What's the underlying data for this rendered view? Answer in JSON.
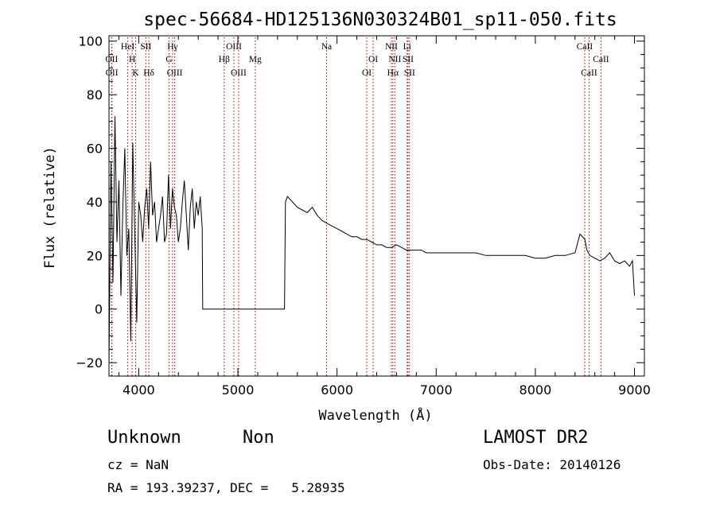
{
  "chart_data": {
    "type": "line",
    "title": "spec-56684-HD125136N030324B01_sp11-050.fits",
    "xlabel": "Wavelength (Å)",
    "ylabel": "Flux (relative)",
    "xlim": [
      3700,
      9100
    ],
    "ylim": [
      -25,
      102
    ],
    "xticks": [
      4000,
      5000,
      6000,
      7000,
      8000,
      9000
    ],
    "yticks": [
      -20,
      0,
      20,
      40,
      60,
      80,
      100
    ],
    "grid": false,
    "series": [
      {
        "x": [
          3700,
          3720,
          3740,
          3760,
          3780,
          3800,
          3820,
          3840,
          3860,
          3880,
          3900,
          3920,
          3940,
          3960,
          3980,
          4000,
          4020,
          4040,
          4060,
          4080,
          4100,
          4120,
          4140,
          4160,
          4180,
          4200,
          4220,
          4240,
          4260,
          4280,
          4300,
          4320,
          4340,
          4360,
          4380,
          4400,
          4420,
          4440,
          4460,
          4480,
          4500,
          4520,
          4540,
          4560,
          4580,
          4600,
          4620,
          4640,
          4645,
          4700,
          4800,
          4900,
          5000,
          5100,
          5200,
          5300,
          5400,
          5470,
          5480,
          5500,
          5550,
          5600,
          5650,
          5700,
          5750,
          5800,
          5850,
          5900,
          5950,
          6000,
          6050,
          6100,
          6150,
          6200,
          6250,
          6300,
          6350,
          6400,
          6450,
          6500,
          6550,
          6600,
          6650,
          6700,
          6750,
          6800,
          6850,
          6900,
          6950,
          7000,
          7100,
          7200,
          7300,
          7400,
          7500,
          7600,
          7700,
          7800,
          7900,
          8000,
          8100,
          8200,
          8300,
          8400,
          8450,
          8500,
          8520,
          8550,
          8600,
          8650,
          8700,
          8750,
          8800,
          8850,
          8900,
          8950,
          8980,
          9000
        ],
        "y": [
          -20,
          55,
          10,
          72,
          25,
          48,
          5,
          38,
          60,
          20,
          30,
          -12,
          62,
          28,
          -5,
          40,
          35,
          25,
          38,
          45,
          30,
          55,
          35,
          40,
          25,
          30,
          35,
          42,
          25,
          28,
          50,
          30,
          45,
          38,
          35,
          25,
          30,
          40,
          48,
          35,
          22,
          38,
          45,
          30,
          40,
          35,
          42,
          30,
          0,
          0,
          0,
          0,
          0,
          0,
          0,
          0,
          0,
          0,
          40,
          42,
          40,
          38,
          37,
          36,
          38,
          35,
          33,
          32,
          31,
          30,
          29,
          28,
          27,
          27,
          26,
          26,
          25,
          24,
          24,
          23,
          23,
          24,
          23,
          22,
          22,
          22,
          22,
          21,
          21,
          21,
          21,
          21,
          21,
          21,
          20,
          20,
          20,
          20,
          20,
          19,
          19,
          20,
          20,
          21,
          28,
          26,
          22,
          20,
          19,
          18,
          19,
          21,
          18,
          17,
          18,
          16,
          18,
          5
        ]
      }
    ],
    "line_annotations": [
      {
        "label": "OII",
        "x": 3727,
        "row": 2
      },
      {
        "label": "OII",
        "x": 3729,
        "row": 3
      },
      {
        "label": "HeI",
        "x": 3889,
        "row": 1
      },
      {
        "label": "H",
        "x": 3934,
        "row": 2
      },
      {
        "label": "K",
        "x": 3969,
        "row": 3
      },
      {
        "label": "SII",
        "x": 4072,
        "row": 1
      },
      {
        "label": "Hδ",
        "x": 4102,
        "row": 3
      },
      {
        "label": "Hγ",
        "x": 4341,
        "row": 1
      },
      {
        "label": "G",
        "x": 4305,
        "row": 2
      },
      {
        "label": "OIII",
        "x": 4363,
        "row": 3
      },
      {
        "label": "OIII",
        "x": 4960,
        "row": 1
      },
      {
        "label": "Hβ",
        "x": 4862,
        "row": 2
      },
      {
        "label": "OIII",
        "x": 5007,
        "row": 3
      },
      {
        "label": "Mg",
        "x": 5175,
        "row": 2
      },
      {
        "label": "Na",
        "x": 5894,
        "row": 1
      },
      {
        "label": "OI",
        "x": 6364,
        "row": 2
      },
      {
        "label": "OI",
        "x": 6300,
        "row": 3
      },
      {
        "label": "NII",
        "x": 6548,
        "row": 1
      },
      {
        "label": "NII",
        "x": 6583,
        "row": 2
      },
      {
        "label": "Hα",
        "x": 6563,
        "row": 3
      },
      {
        "label": "Li",
        "x": 6707,
        "row": 1
      },
      {
        "label": "SII",
        "x": 6716,
        "row": 2
      },
      {
        "label": "SII",
        "x": 6731,
        "row": 3
      },
      {
        "label": "CaII",
        "x": 8498,
        "row": 1
      },
      {
        "label": "CaII",
        "x": 8662,
        "row": 2
      },
      {
        "label": "CaII",
        "x": 8542,
        "row": 3
      }
    ]
  },
  "info": {
    "class": "Unknown",
    "subclass": "Non",
    "survey": "LAMOST DR2",
    "cz": "cz = NaN",
    "obs_date": "Obs-Date: 20140126",
    "coords": "RA = 193.39237, DEC =   5.28935"
  },
  "colors": {
    "line": "#000000",
    "marker": "#aa0000",
    "background": "#ffffff"
  }
}
